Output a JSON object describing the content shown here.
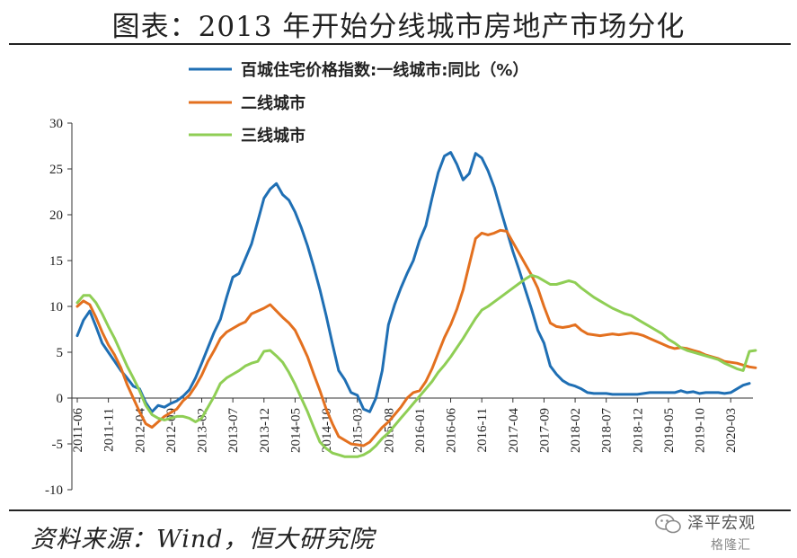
{
  "page": {
    "title": "图表：2013 年开始分线城市房地产市场分化",
    "source": "资料来源：Wind，恒大研究院",
    "watermark": {
      "name": "泽平宏观",
      "logo": "格隆汇"
    }
  },
  "colors": {
    "tier1": "#1f6fb4",
    "tier2": "#e3701f",
    "tier3": "#8fce55"
  },
  "chart_data": {
    "type": "line",
    "title": "",
    "xlabel": "",
    "ylabel": "",
    "ylim": [
      -10,
      30
    ],
    "yticks": [
      -10,
      -5,
      0,
      5,
      10,
      15,
      20,
      25,
      30
    ],
    "legend_position": "top",
    "grid": false,
    "x_start": "2011-06",
    "x_tick_labels": [
      "2011-06",
      "2011-11",
      "2012-04",
      "2012-09",
      "2013-02",
      "2013-07",
      "2013-12",
      "2014-05",
      "2014-10",
      "2015-03",
      "2015-08",
      "2016-01",
      "2016-06",
      "2016-11",
      "2017-04",
      "2017-09",
      "2018-02",
      "2018-07",
      "2018-12",
      "2019-05",
      "2019-10",
      "2020-03"
    ],
    "series": [
      {
        "name": "百城住宅价格指数:一线城市:同比（%）",
        "color": "#1f6fb4",
        "values": [
          6.8,
          8.5,
          9.5,
          7.8,
          6.0,
          5.0,
          4.0,
          3.0,
          2.2,
          1.3,
          1.0,
          -0.5,
          -1.5,
          -0.8,
          -1.0,
          -0.6,
          -0.3,
          0.2,
          0.9,
          2.2,
          3.8,
          5.5,
          7.2,
          8.6,
          11.0,
          13.2,
          13.6,
          15.2,
          16.8,
          19.3,
          21.8,
          22.8,
          23.4,
          22.2,
          21.6,
          20.3,
          18.6,
          16.6,
          14.3,
          11.8,
          9.0,
          5.9,
          3.0,
          2.0,
          0.6,
          0.3,
          -1.2,
          -1.5,
          0.0,
          3.0,
          8.0,
          10.2,
          12.0,
          13.6,
          15.0,
          17.2,
          18.8,
          21.8,
          24.6,
          26.4,
          26.8,
          25.5,
          23.8,
          24.5,
          26.7,
          26.2,
          24.8,
          23.0,
          20.6,
          18.3,
          16.0,
          14.0,
          11.8,
          9.7,
          7.4,
          6.0,
          3.5,
          2.6,
          1.9,
          1.5,
          1.3,
          1.0,
          0.6,
          0.5,
          0.5,
          0.5,
          0.4,
          0.4,
          0.4,
          0.4,
          0.4,
          0.5,
          0.6,
          0.6,
          0.6,
          0.6,
          0.6,
          0.8,
          0.6,
          0.7,
          0.5,
          0.6,
          0.6,
          0.6,
          0.5,
          0.6,
          1.0,
          1.4,
          1.6
        ]
      },
      {
        "name": "二线城市",
        "color": "#e3701f",
        "values": [
          10.0,
          10.6,
          10.2,
          8.8,
          7.2,
          5.8,
          4.7,
          3.3,
          1.5,
          0.0,
          -1.5,
          -2.8,
          -3.2,
          -2.6,
          -2.0,
          -1.6,
          -1.2,
          -0.3,
          0.3,
          1.3,
          2.5,
          4.0,
          5.2,
          6.5,
          7.2,
          7.6,
          8.0,
          8.3,
          9.2,
          9.5,
          9.8,
          10.2,
          9.5,
          8.8,
          8.2,
          7.4,
          6.0,
          4.5,
          2.6,
          0.8,
          -1.2,
          -2.8,
          -4.2,
          -4.6,
          -5.0,
          -5.1,
          -5.2,
          -4.8,
          -4.0,
          -3.2,
          -2.6,
          -1.8,
          -1.0,
          0.0,
          0.6,
          0.8,
          1.8,
          3.2,
          4.9,
          6.6,
          8.0,
          9.7,
          11.8,
          14.6,
          17.4,
          18.0,
          17.8,
          18.0,
          18.3,
          18.2,
          17.0,
          15.8,
          14.6,
          13.4,
          12.0,
          10.0,
          8.2,
          7.8,
          7.7,
          7.8,
          8.0,
          7.4,
          7.0,
          6.9,
          6.8,
          6.9,
          7.0,
          6.9,
          7.0,
          7.1,
          7.0,
          6.8,
          6.5,
          6.2,
          5.9,
          5.6,
          5.4,
          5.5,
          5.4,
          5.2,
          5.0,
          4.7,
          4.5,
          4.3,
          4.0,
          3.9,
          3.8,
          3.6,
          3.4,
          3.3
        ]
      },
      {
        "name": "三线城市",
        "color": "#8fce55",
        "values": [
          10.4,
          11.2,
          11.2,
          10.4,
          9.2,
          7.8,
          6.5,
          5.0,
          3.5,
          2.2,
          0.8,
          -0.8,
          -1.8,
          -2.2,
          -2.4,
          -2.2,
          -2.0,
          -2.0,
          -2.2,
          -2.6,
          -2.2,
          -1.0,
          0.2,
          1.6,
          2.2,
          2.6,
          3.0,
          3.5,
          3.8,
          4.0,
          5.1,
          5.2,
          4.6,
          3.9,
          2.8,
          1.5,
          0.0,
          -1.5,
          -3.2,
          -4.8,
          -5.5,
          -6.0,
          -6.2,
          -6.4,
          -6.4,
          -6.4,
          -6.2,
          -5.8,
          -5.2,
          -4.4,
          -3.8,
          -3.0,
          -2.2,
          -1.4,
          -0.6,
          0.2,
          1.0,
          1.8,
          2.8,
          3.6,
          4.5,
          5.5,
          6.5,
          7.6,
          8.7,
          9.6,
          10.0,
          10.5,
          11.0,
          11.5,
          12.0,
          12.5,
          13.0,
          13.4,
          13.2,
          12.8,
          12.4,
          12.4,
          12.6,
          12.8,
          12.6,
          12.0,
          11.5,
          11.0,
          10.6,
          10.2,
          9.8,
          9.5,
          9.2,
          9.0,
          8.6,
          8.2,
          7.8,
          7.4,
          7.0,
          6.4,
          6.0,
          5.5,
          5.2,
          5.0,
          4.8,
          4.6,
          4.4,
          4.2,
          3.8,
          3.5,
          3.2,
          3.0,
          5.1,
          5.2
        ]
      }
    ]
  }
}
